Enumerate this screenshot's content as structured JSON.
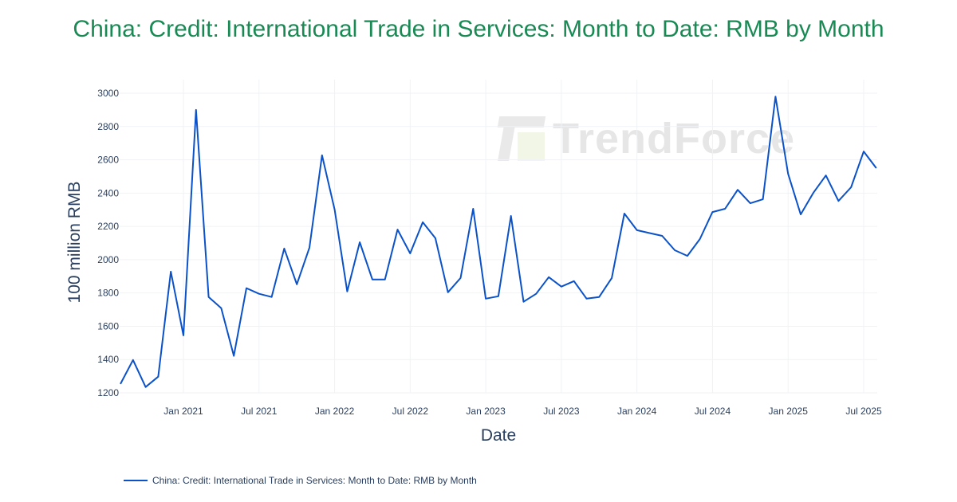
{
  "title": "China: Credit: International Trade in Services: Month to Date: RMB by Month",
  "watermark": "TrendForce",
  "legend": {
    "label": "China: Credit: International Trade in Services: Month to Date: RMB by Month",
    "color": "#0b52c9"
  },
  "colors": {
    "title": "#1a8a55",
    "line": "#0b52c9",
    "grid": "#f0f2f5",
    "tick_text": "#2a3f5f"
  },
  "chart_data": {
    "type": "line",
    "title": "China: Credit: International Trade in Services: Month to Date: RMB by Month",
    "xlabel": "Date",
    "ylabel": "100 million RMB",
    "ylim": [
      1200,
      3000
    ],
    "yticks": [
      1200,
      1400,
      1600,
      1800,
      2000,
      2200,
      2400,
      2600,
      2800,
      3000
    ],
    "xticks": [
      {
        "label": "Jan 2021",
        "index": 5
      },
      {
        "label": "Jul 2021",
        "index": 11
      },
      {
        "label": "Jan 2022",
        "index": 17
      },
      {
        "label": "Jul 2022",
        "index": 23
      },
      {
        "label": "Jan 2023",
        "index": 29
      },
      {
        "label": "Jul 2023",
        "index": 35
      },
      {
        "label": "Jan 2024",
        "index": 41
      },
      {
        "label": "Jul 2024",
        "index": 47
      },
      {
        "label": "Jan 2025",
        "index": 53
      },
      {
        "label": "Jul 2025",
        "index": 59
      }
    ],
    "grid": true,
    "legend_position": "bottom-left",
    "x": [
      "2020-08",
      "2020-09",
      "2020-10",
      "2020-11",
      "2020-12",
      "2021-01",
      "2021-02",
      "2021-03",
      "2021-04",
      "2021-05",
      "2021-06",
      "2021-07",
      "2021-08",
      "2021-09",
      "2021-10",
      "2021-11",
      "2021-12",
      "2022-01",
      "2022-02",
      "2022-03",
      "2022-04",
      "2022-05",
      "2022-06",
      "2022-07",
      "2022-08",
      "2022-09",
      "2022-10",
      "2022-11",
      "2022-12",
      "2023-01",
      "2023-02",
      "2023-03",
      "2023-04",
      "2023-05",
      "2023-06",
      "2023-07",
      "2023-08",
      "2023-09",
      "2023-10",
      "2023-11",
      "2023-12",
      "2024-01",
      "2024-02",
      "2024-03",
      "2024-04",
      "2024-05",
      "2024-06",
      "2024-07",
      "2024-08",
      "2024-09",
      "2024-10",
      "2024-11",
      "2024-12",
      "2025-01",
      "2025-02",
      "2025-03",
      "2025-04",
      "2025-05",
      "2025-06",
      "2025-07",
      "2025-08"
    ],
    "series": [
      {
        "name": "China: Credit: International Trade in Services: Month to Date: RMB by Month",
        "values": [
          1253,
          1397,
          1235,
          1297,
          1928,
          1545,
          2900,
          1776,
          1709,
          1422,
          1829,
          1795,
          1776,
          2067,
          1852,
          2072,
          2627,
          2301,
          1809,
          2105,
          1881,
          1881,
          2181,
          2038,
          2225,
          2129,
          1804,
          1890,
          2306,
          1766,
          1780,
          2263,
          1747,
          1795,
          1895,
          1838,
          1871,
          1766,
          1776,
          1890,
          2277,
          2177,
          2160,
          2143,
          2057,
          2023,
          2124,
          2286,
          2306,
          2420,
          2339,
          2363,
          2980,
          2516,
          2272,
          2401,
          2506,
          2353,
          2435,
          2650,
          2550
        ]
      }
    ]
  }
}
